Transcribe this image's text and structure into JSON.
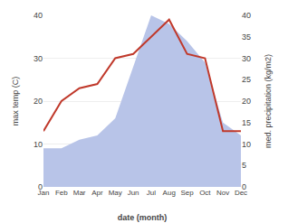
{
  "chart_data": {
    "type": "line",
    "xlabel": "date (month)",
    "ylabel": "max temp (C)",
    "y2label": "med. precipitation (kg/m2)",
    "categories": [
      "Jan",
      "Feb",
      "Mar",
      "Apr",
      "May",
      "Jun",
      "Jul",
      "Aug",
      "Sep",
      "Oct",
      "Nov",
      "Dec"
    ],
    "series": [
      {
        "type": "area",
        "axis": "y2",
        "color": "#b8c4e8",
        "values": [
          9,
          9,
          11,
          12,
          16,
          28,
          40,
          38,
          34,
          29,
          15,
          12
        ]
      },
      {
        "type": "line",
        "color": "#c0392b",
        "values": [
          13,
          20,
          23,
          24,
          30,
          31,
          35,
          39,
          31,
          30,
          13,
          13
        ]
      }
    ],
    "ylim": [
      0,
      40
    ],
    "yticks": [
      0,
      10,
      20,
      30,
      40
    ],
    "y2lim": [
      0,
      40
    ],
    "y2ticks": [
      0,
      5,
      10,
      15,
      20,
      25,
      30,
      35,
      40
    ],
    "grid": true
  }
}
